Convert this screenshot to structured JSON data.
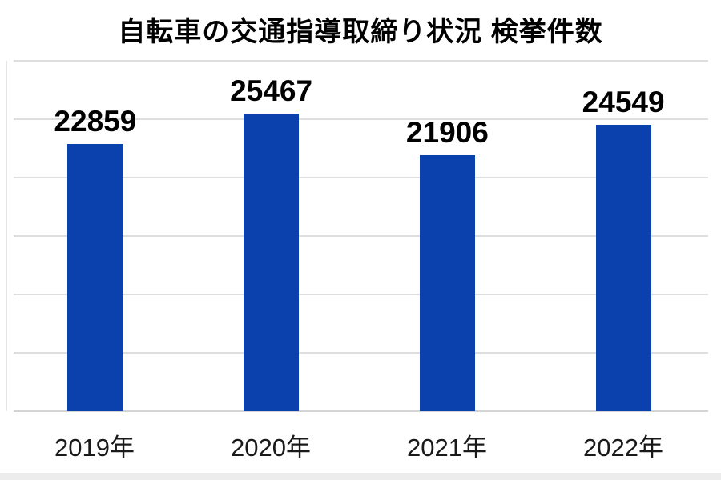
{
  "chart_data": {
    "type": "bar",
    "title": "自転車の交通指導取締り状況 検挙件数",
    "categories": [
      "2019年",
      "2020年",
      "2021年",
      "2022年"
    ],
    "values": [
      22859,
      25467,
      21906,
      24549
    ],
    "value_labels": [
      "22859",
      "25467",
      "21906",
      "24549"
    ],
    "xlabel": "",
    "ylabel": "",
    "ylim": [
      0,
      30000
    ],
    "gridline_step": 5000,
    "grid": true,
    "legend": false,
    "bar_color": "#0b41ad",
    "gridline_color": "#dedede",
    "axis_line_color": "#d4d4d4",
    "value_label_color": "#000000",
    "tick_label_color": "#1a1a1a",
    "background_color": "#ffffff"
  }
}
